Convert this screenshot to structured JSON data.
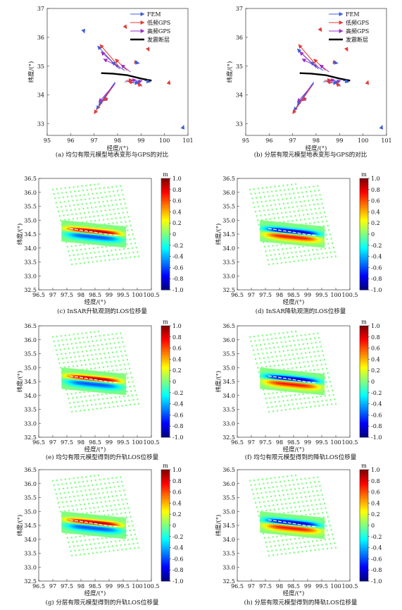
{
  "colorbar_ticks": [
    "1.0",
    "0.8",
    "0.6",
    "0.4",
    "0.2",
    "0",
    "-0.2",
    "-0.4",
    "-0.6",
    "-0.8",
    "-1.0"
  ],
  "colorbar_unit": "m",
  "chart_data": [
    {
      "type": "vector-field",
      "caption": "(a) 均匀有限元模型地表变形与GPS的对比",
      "xlabel": "经度/(°)",
      "ylabel": "纬度/(°)",
      "xlim": [
        95,
        101
      ],
      "ylim": [
        32.6,
        37
      ],
      "xticks": [
        "95",
        "96",
        "97",
        "98",
        "99",
        "100",
        "101"
      ],
      "yticks": [
        "33",
        "34",
        "35",
        "36",
        "37"
      ],
      "legend": [
        {
          "name": "FEM",
          "color": "#3d5fd9"
        },
        {
          "name": "低频GPS",
          "color": "#e53935"
        },
        {
          "name": "高频GPS",
          "color": "#9b30c8"
        },
        {
          "name": "发震断层",
          "color": "#000000"
        }
      ],
      "fault": [
        [
          97.3,
          34.76
        ],
        [
          97.8,
          34.74
        ],
        [
          98.4,
          34.69
        ],
        [
          99.0,
          34.57
        ],
        [
          99.45,
          34.5
        ]
      ],
      "arrows": [
        {
          "x": 98.0,
          "y": 34.95,
          "dx": -0.85,
          "dy": 0.75,
          "c": "FEM"
        },
        {
          "x": 98.1,
          "y": 34.95,
          "dx": -0.85,
          "dy": 0.8,
          "c": "低频GPS"
        },
        {
          "x": 98.1,
          "y": 34.9,
          "dx": -0.8,
          "dy": 0.6,
          "c": "高频GPS"
        },
        {
          "x": 98.3,
          "y": 34.85,
          "dx": -0.55,
          "dy": 0.3,
          "c": "FEM"
        },
        {
          "x": 98.4,
          "y": 34.85,
          "dx": -0.5,
          "dy": 0.4,
          "c": "低频GPS"
        },
        {
          "x": 98.55,
          "y": 34.8,
          "dx": -0.4,
          "dy": 0.25,
          "c": "高频GPS"
        },
        {
          "x": 98.0,
          "y": 35.0,
          "dx": -0.6,
          "dy": 0.25,
          "c": "高频GPS"
        },
        {
          "x": 97.85,
          "y": 34.4,
          "dx": -0.65,
          "dy": -0.75,
          "c": "FEM"
        },
        {
          "x": 97.9,
          "y": 34.45,
          "dx": -0.8,
          "dy": -0.95,
          "c": "FEM"
        },
        {
          "x": 97.85,
          "y": 34.35,
          "dx": -0.85,
          "dy": -1.0,
          "c": "低频GPS"
        },
        {
          "x": 97.9,
          "y": 34.4,
          "dx": -0.7,
          "dy": -0.65,
          "c": "高频GPS"
        },
        {
          "x": 98.3,
          "y": 34.45,
          "dx": 0.35,
          "dy": 0.05,
          "c": "FEM"
        },
        {
          "x": 98.35,
          "y": 34.5,
          "dx": 0.3,
          "dy": 0.02,
          "c": "低频GPS"
        },
        {
          "x": 98.5,
          "y": 34.5,
          "dx": 0.3,
          "dy": 0.02,
          "c": "高频GPS"
        },
        {
          "x": 98.55,
          "y": 34.42,
          "dx": 0.35,
          "dy": 0.0,
          "c": "FEM"
        },
        {
          "x": 98.7,
          "y": 34.42,
          "dx": -0.25,
          "dy": 0.05,
          "c": "低频GPS"
        },
        {
          "x": 98.85,
          "y": 34.45,
          "dx": 0.2,
          "dy": 0.05,
          "c": "高频GPS"
        },
        {
          "x": 99.15,
          "y": 34.5,
          "dx": 0.25,
          "dy": -0.05,
          "c": "FEM"
        },
        {
          "x": 99.05,
          "y": 34.3,
          "dx": -0.25,
          "dy": 0.2,
          "c": "FEM"
        },
        {
          "x": 99.0,
          "y": 34.3,
          "dx": -0.15,
          "dy": 0.12,
          "c": "低频GPS"
        },
        {
          "x": 97.6,
          "y": 33.9,
          "dx": -0.18,
          "dy": -0.1,
          "c": "FEM"
        },
        {
          "x": 97.55,
          "y": 33.9,
          "dx": -0.15,
          "dy": -0.1,
          "c": "低频GPS"
        },
        {
          "x": 96.55,
          "y": 36.25,
          "dx": 0.04,
          "dy": -0.1,
          "c": "FEM"
        },
        {
          "x": 98.35,
          "y": 36.35,
          "dx": 0.04,
          "dy": -0.05,
          "c": "低频GPS"
        },
        {
          "x": 98.7,
          "y": 35.15,
          "dx": 0.18,
          "dy": -0.03,
          "c": "低频GPS"
        },
        {
          "x": 98.75,
          "y": 35.13,
          "dx": 0.18,
          "dy": -0.03,
          "c": "FEM"
        },
        {
          "x": 99.3,
          "y": 35.6,
          "dx": 0.05,
          "dy": -0.08,
          "c": "低频GPS"
        },
        {
          "x": 100.2,
          "y": 34.45,
          "dx": 0.02,
          "dy": 0.05,
          "c": "低频GPS"
        },
        {
          "x": 100.8,
          "y": 32.9,
          "dx": 0.02,
          "dy": 0.05,
          "c": "FEM"
        }
      ]
    },
    {
      "type": "vector-field",
      "caption": "(b) 分层有限元模型地表变形与GPS的对比",
      "xlabel": "经度/(°)",
      "ylabel": "纬度/(°)",
      "xlim": [
        95,
        101
      ],
      "ylim": [
        32.6,
        37
      ],
      "xticks": [
        "95",
        "96",
        "97",
        "98",
        "99",
        "100",
        "101"
      ],
      "yticks": [
        "33",
        "34",
        "35",
        "36",
        "37"
      ],
      "legend": [
        {
          "name": "FEM",
          "color": "#3d5fd9"
        },
        {
          "name": "低频GPS",
          "color": "#e53935"
        },
        {
          "name": "高频GPS",
          "color": "#9b30c8"
        },
        {
          "name": "发震断层",
          "color": "#000000"
        }
      ],
      "fault": [
        [
          97.3,
          34.76
        ],
        [
          97.8,
          34.74
        ],
        [
          98.4,
          34.69
        ],
        [
          99.0,
          34.57
        ],
        [
          99.45,
          34.5
        ]
      ],
      "arrows": [
        {
          "x": 98.0,
          "y": 34.95,
          "dx": -0.8,
          "dy": 0.65,
          "c": "FEM"
        },
        {
          "x": 98.1,
          "y": 34.95,
          "dx": -0.85,
          "dy": 0.8,
          "c": "低频GPS"
        },
        {
          "x": 98.1,
          "y": 34.9,
          "dx": -0.8,
          "dy": 0.6,
          "c": "高频GPS"
        },
        {
          "x": 98.3,
          "y": 34.85,
          "dx": -0.55,
          "dy": 0.3,
          "c": "FEM"
        },
        {
          "x": 98.4,
          "y": 34.85,
          "dx": -0.5,
          "dy": 0.4,
          "c": "低频GPS"
        },
        {
          "x": 98.55,
          "y": 34.8,
          "dx": -0.4,
          "dy": 0.25,
          "c": "高频GPS"
        },
        {
          "x": 98.0,
          "y": 35.0,
          "dx": -0.6,
          "dy": 0.25,
          "c": "高频GPS"
        },
        {
          "x": 97.85,
          "y": 34.4,
          "dx": -0.65,
          "dy": -0.75,
          "c": "FEM"
        },
        {
          "x": 97.9,
          "y": 34.45,
          "dx": -0.85,
          "dy": -1.0,
          "c": "FEM"
        },
        {
          "x": 97.85,
          "y": 34.35,
          "dx": -0.85,
          "dy": -1.0,
          "c": "低频GPS"
        },
        {
          "x": 97.9,
          "y": 34.4,
          "dx": -0.7,
          "dy": -0.65,
          "c": "高频GPS"
        },
        {
          "x": 98.3,
          "y": 34.45,
          "dx": 0.35,
          "dy": 0.05,
          "c": "FEM"
        },
        {
          "x": 98.35,
          "y": 34.5,
          "dx": 0.3,
          "dy": 0.02,
          "c": "低频GPS"
        },
        {
          "x": 98.5,
          "y": 34.5,
          "dx": 0.3,
          "dy": 0.02,
          "c": "高频GPS"
        },
        {
          "x": 98.55,
          "y": 34.42,
          "dx": 0.35,
          "dy": 0.0,
          "c": "FEM"
        },
        {
          "x": 98.7,
          "y": 34.42,
          "dx": -0.25,
          "dy": 0.05,
          "c": "低频GPS"
        },
        {
          "x": 98.85,
          "y": 34.45,
          "dx": 0.2,
          "dy": 0.05,
          "c": "高频GPS"
        },
        {
          "x": 99.15,
          "y": 34.5,
          "dx": 0.25,
          "dy": -0.05,
          "c": "FEM"
        },
        {
          "x": 99.05,
          "y": 34.3,
          "dx": -0.25,
          "dy": 0.2,
          "c": "FEM"
        },
        {
          "x": 99.0,
          "y": 34.3,
          "dx": -0.15,
          "dy": 0.12,
          "c": "低频GPS"
        },
        {
          "x": 97.6,
          "y": 33.9,
          "dx": -0.18,
          "dy": -0.1,
          "c": "FEM"
        },
        {
          "x": 97.55,
          "y": 33.9,
          "dx": -0.15,
          "dy": -0.1,
          "c": "低频GPS"
        },
        {
          "x": 98.2,
          "y": 36.25,
          "dx": 0.04,
          "dy": -0.05,
          "c": "低频GPS"
        },
        {
          "x": 98.7,
          "y": 35.15,
          "dx": 0.18,
          "dy": -0.03,
          "c": "低频GPS"
        },
        {
          "x": 98.75,
          "y": 35.13,
          "dx": 0.18,
          "dy": -0.03,
          "c": "FEM"
        },
        {
          "x": 99.3,
          "y": 35.6,
          "dx": 0.05,
          "dy": -0.08,
          "c": "低频GPS"
        },
        {
          "x": 100.2,
          "y": 34.45,
          "dx": 0.02,
          "dy": 0.05,
          "c": "低频GPS"
        },
        {
          "x": 100.8,
          "y": 32.9,
          "dx": 0.02,
          "dy": 0.05,
          "c": "FEM"
        }
      ]
    },
    {
      "type": "heatmap",
      "caption": "(c) InSAR升轨观测的LOS位移量",
      "orbit": "ascending",
      "xlabel": "经度/(°)",
      "ylabel": "纬度/(°)",
      "xlim": [
        96.5,
        100.5
      ],
      "ylim": [
        32.5,
        36.5
      ],
      "clim": [
        -1.0,
        1.0
      ],
      "unit": "m",
      "peak_value": 1.0,
      "trough_value": -0.6,
      "xticks": [
        "96.5",
        "97",
        "97.5",
        "98",
        "98.5",
        "99",
        "99.5",
        "100",
        "100.5"
      ],
      "yticks": [
        "32.5",
        "33.0",
        "33.5",
        "34.0",
        "34.5",
        "35.0",
        "35.5",
        "36.0",
        "36.5"
      ]
    },
    {
      "type": "heatmap",
      "caption": "(d) InSAR降轨观测的LOS位移量",
      "orbit": "descending",
      "xlabel": "经度/(°)",
      "ylabel": "纬度/(°)",
      "xlim": [
        96.5,
        100.5
      ],
      "ylim": [
        32.5,
        36.5
      ],
      "clim": [
        -1.0,
        1.0
      ],
      "unit": "m",
      "peak_value": 0.8,
      "trough_value": -1.0,
      "xticks": [
        "96.5",
        "97",
        "97.5",
        "98",
        "98.5",
        "99",
        "99.5",
        "100",
        "100.5"
      ],
      "yticks": [
        "32.5",
        "33.0",
        "33.5",
        "34.0",
        "34.5",
        "35.0",
        "35.5",
        "36.0",
        "36.5"
      ]
    },
    {
      "type": "heatmap",
      "caption": "(e) 均匀有限元模型得到的升轨LOS位移量",
      "orbit": "ascending",
      "xlabel": "经度/(°)",
      "ylabel": "纬度/(°)",
      "xlim": [
        96.5,
        100.5
      ],
      "ylim": [
        32.5,
        36.5
      ],
      "clim": [
        -1.0,
        1.0
      ],
      "unit": "m",
      "peak_value": 1.0,
      "trough_value": -0.6,
      "xticks": [
        "96.5",
        "97",
        "97.5",
        "98",
        "98.5",
        "99",
        "99.5",
        "100",
        "100.5"
      ],
      "yticks": [
        "32.5",
        "33.0",
        "33.5",
        "34.0",
        "34.5",
        "35.0",
        "35.5",
        "36.0",
        "36.5"
      ]
    },
    {
      "type": "heatmap",
      "caption": "(f) 均匀有限元模型得到的降轨LOS位移量",
      "orbit": "descending",
      "xlabel": "经度/(°)",
      "ylabel": "纬度/(°)",
      "xlim": [
        96.5,
        100.5
      ],
      "ylim": [
        32.5,
        36.5
      ],
      "clim": [
        -1.0,
        1.0
      ],
      "unit": "m",
      "peak_value": 0.8,
      "trough_value": -1.0,
      "xticks": [
        "96.5",
        "97",
        "97.5",
        "98",
        "98.5",
        "99",
        "99.5",
        "100",
        "100.5"
      ],
      "yticks": [
        "32.5",
        "33.0",
        "33.5",
        "34.0",
        "34.5",
        "35.0",
        "35.5",
        "36.0",
        "36.5"
      ]
    },
    {
      "type": "heatmap",
      "caption": "(g) 分层有限元模型得到的升轨LOS位移量",
      "orbit": "ascending",
      "xlabel": "经度/(°)",
      "ylabel": "纬度/(°)",
      "xlim": [
        96.5,
        100.5
      ],
      "ylim": [
        32.5,
        36.5
      ],
      "clim": [
        -1.0,
        1.0
      ],
      "unit": "m",
      "peak_value": 1.0,
      "trough_value": -0.6,
      "xticks": [
        "96.5",
        "97",
        "97.5",
        "98",
        "98.5",
        "99",
        "99.5",
        "100",
        "100.5"
      ],
      "yticks": [
        "32.5",
        "33.0",
        "33.5",
        "34.0",
        "34.5",
        "35.0",
        "35.5",
        "36.0",
        "36.5"
      ]
    },
    {
      "type": "heatmap",
      "caption": "(h) 分层有限元模型得到的降轨LOS位移量",
      "orbit": "descending",
      "xlabel": "经度/(°)",
      "ylabel": "纬度/(°)",
      "xlim": [
        96.5,
        100.5
      ],
      "ylim": [
        32.5,
        36.5
      ],
      "clim": [
        -1.0,
        1.0
      ],
      "unit": "m",
      "peak_value": 0.8,
      "trough_value": -1.0,
      "xticks": [
        "96.5",
        "97",
        "97.5",
        "98",
        "98.5",
        "99",
        "99.5",
        "100",
        "100.5"
      ],
      "yticks": [
        "32.5",
        "33.0",
        "33.5",
        "34.0",
        "34.5",
        "35.0",
        "35.5",
        "36.0",
        "36.5"
      ]
    }
  ]
}
